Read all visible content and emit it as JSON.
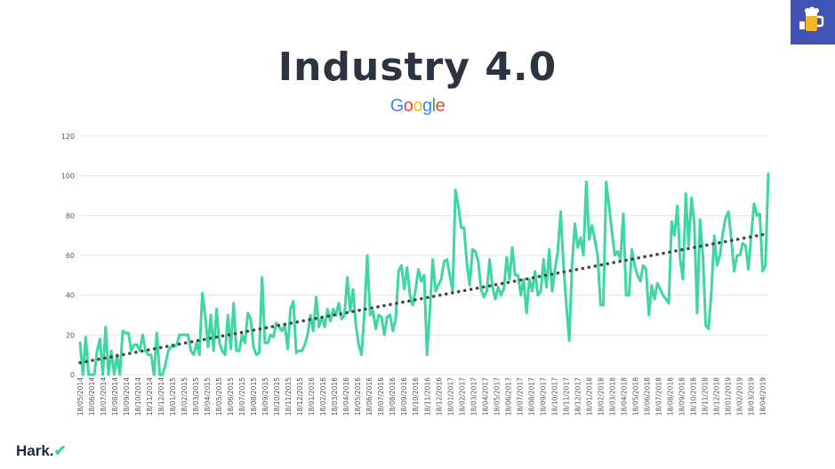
{
  "title": "Industry 4.0",
  "source_logo": {
    "letters": [
      "G",
      "o",
      "o",
      "g",
      "l",
      "e"
    ],
    "colors": [
      "#4285f4",
      "#ea4335",
      "#fbbc05",
      "#4285f4",
      "#34a853",
      "#ea4335"
    ]
  },
  "brand": {
    "name": "Hark.",
    "mark": "✔"
  },
  "badge": {
    "icon": "beer-mug-icon",
    "color": "#4053b5"
  },
  "colors": {
    "series": "#3fd5a4",
    "trend": "#444444",
    "title": "#2b3541",
    "grid": "#e5e5e5",
    "axis_text": "#555555"
  },
  "chart_data": {
    "type": "line",
    "title": "",
    "xlabel": "",
    "ylabel": "",
    "ylim": [
      0,
      120
    ],
    "yticks": [
      0,
      20,
      40,
      60,
      80,
      100,
      120
    ],
    "grid": true,
    "x_tick_labels": [
      "18/05/2014",
      "18/06/2014",
      "18/07/2014",
      "18/08/2014",
      "18/09/2014",
      "18/10/2014",
      "18/11/2014",
      "18/12/2014",
      "18/01/2015",
      "18/02/2015",
      "18/03/2015",
      "18/04/2015",
      "18/05/2015",
      "18/06/2015",
      "18/07/2015",
      "18/08/2015",
      "18/09/2015",
      "18/10/2015",
      "18/11/2015",
      "18/12/2015",
      "18/01/2016",
      "18/02/2016",
      "18/03/2016",
      "18/04/2016",
      "18/05/2016",
      "18/06/2016",
      "18/07/2016",
      "18/08/2016",
      "18/09/2016",
      "18/10/2016",
      "18/11/2016",
      "18/12/2016",
      "18/01/2017",
      "18/02/2017",
      "18/03/2017",
      "18/04/2017",
      "18/05/2017",
      "18/06/2017",
      "18/07/2017",
      "18/08/2017",
      "18/09/2017",
      "18/10/2017",
      "18/11/2017",
      "18/12/2017",
      "18/01/2018",
      "18/02/2018",
      "18/03/2018",
      "18/04/2018",
      "18/05/2018",
      "18/06/2018",
      "18/07/2018",
      "18/08/2018",
      "18/09/2018",
      "18/10/2018",
      "18/11/2018",
      "18/12/2018",
      "18/01/2019",
      "18/02/2019",
      "18/03/2019",
      "18/04/2019"
    ],
    "series": [
      {
        "values": [
          16,
          0,
          19,
          0,
          0,
          0,
          12,
          18,
          0,
          24,
          0,
          12,
          0,
          10,
          0,
          22,
          21,
          21,
          12,
          15,
          15,
          12,
          20,
          12,
          10,
          10,
          0,
          21,
          0,
          0,
          5,
          12,
          14,
          14,
          15,
          20,
          20,
          20,
          20,
          12,
          10,
          16,
          10,
          41,
          30,
          14,
          30,
          12,
          33,
          16,
          12,
          10,
          30,
          13,
          36,
          12,
          12,
          20,
          16,
          31,
          28,
          14,
          10,
          11,
          49,
          16,
          16,
          20,
          19,
          26,
          24,
          22,
          25,
          13,
          33,
          37,
          11,
          12,
          12,
          15,
          20,
          30,
          22,
          39,
          24,
          29,
          24,
          33,
          27,
          33,
          30,
          36,
          28,
          30,
          49,
          32,
          43,
          25,
          15,
          10,
          31,
          60,
          30,
          32,
          23,
          30,
          29,
          20,
          29,
          30,
          22,
          28,
          52,
          55,
          43,
          54,
          40,
          35,
          43,
          53,
          47,
          50,
          10,
          32,
          58,
          42,
          45,
          48,
          57,
          58,
          50,
          42,
          93,
          85,
          74,
          74,
          56,
          45,
          63,
          62,
          57,
          43,
          39,
          42,
          58,
          44,
          38,
          44,
          40,
          43,
          59,
          48,
          64,
          50,
          50,
          40,
          48,
          31,
          48,
          42,
          52,
          40,
          42,
          58,
          44,
          63,
          42,
          53,
          62,
          82,
          55,
          35,
          17,
          55,
          76,
          64,
          69,
          60,
          97,
          68,
          75,
          68,
          60,
          35,
          35,
          97,
          85,
          72,
          60,
          62,
          58,
          81,
          40,
          40,
          63,
          55,
          50,
          47,
          55,
          53,
          30,
          45,
          38,
          46,
          43,
          40,
          38,
          36,
          77,
          70,
          85,
          58,
          48,
          91,
          65,
          89,
          76,
          31,
          78,
          60,
          25,
          23,
          42,
          70,
          55,
          60,
          71,
          79,
          82,
          68,
          52,
          60,
          60,
          66,
          65,
          53,
          70,
          86,
          80,
          81,
          52,
          55,
          101
        ]
      },
      {
        "name": "",
        "style": "trend",
        "values": [
          6,
          71
        ]
      }
    ]
  }
}
